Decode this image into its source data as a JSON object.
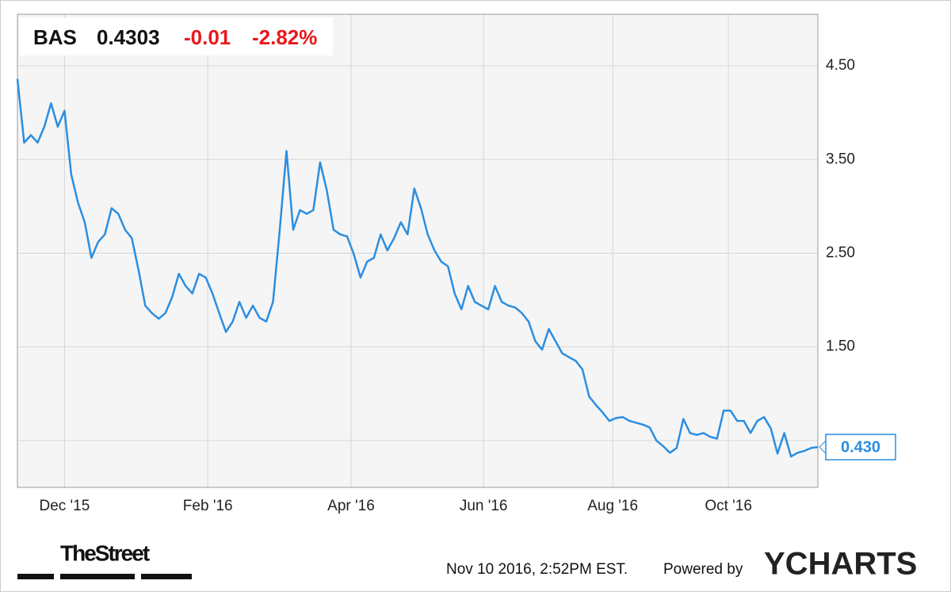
{
  "chart_data": {
    "type": "line",
    "quote": {
      "symbol": "BAS",
      "price": "0.4303",
      "change": "-0.01",
      "change_pct": "-2.82%"
    },
    "last_label": "0.430",
    "brand": "TheStreet",
    "timestamp": "Nov 10 2016, 2:52PM EST.",
    "powered_by": "Powered by",
    "provider": "YCHARTS",
    "color": "#2b8ee0",
    "grid": true,
    "ylim": [
      0,
      5.05
    ],
    "yticks": [
      {
        "value": 0.5,
        "label": null
      },
      {
        "value": 1.5,
        "label": "1.50"
      },
      {
        "value": 2.5,
        "label": "2.50"
      },
      {
        "value": 3.5,
        "label": "3.50"
      },
      {
        "value": 4.5,
        "label": "4.50"
      }
    ],
    "xlim": [
      0,
      119
    ],
    "xticks": [
      {
        "value": 7,
        "label": "Dec '15"
      },
      {
        "value": 28.3,
        "label": "Feb '16"
      },
      {
        "value": 49.6,
        "label": "Apr '16"
      },
      {
        "value": 69.3,
        "label": "Jun '16"
      },
      {
        "value": 88.5,
        "label": "Aug '16"
      },
      {
        "value": 105.7,
        "label": "Oct '16"
      }
    ],
    "values": [
      4.36,
      3.68,
      3.76,
      3.68,
      3.85,
      4.1,
      3.85,
      4.02,
      3.34,
      3.04,
      2.83,
      2.45,
      2.62,
      2.7,
      2.98,
      2.92,
      2.75,
      2.66,
      2.32,
      1.94,
      1.86,
      1.8,
      1.86,
      2.03,
      2.28,
      2.15,
      2.07,
      2.28,
      2.24,
      2.07,
      1.86,
      1.66,
      1.77,
      1.98,
      1.81,
      1.94,
      1.81,
      1.77,
      1.98,
      2.75,
      3.59,
      2.75,
      2.96,
      2.92,
      2.96,
      3.47,
      3.17,
      2.75,
      2.7,
      2.68,
      2.49,
      2.24,
      2.41,
      2.45,
      2.7,
      2.53,
      2.66,
      2.83,
      2.7,
      3.19,
      2.98,
      2.7,
      2.53,
      2.41,
      2.36,
      2.07,
      1.9,
      2.15,
      1.98,
      1.94,
      1.9,
      2.15,
      1.98,
      1.94,
      1.92,
      1.86,
      1.77,
      1.56,
      1.47,
      1.69,
      1.56,
      1.43,
      1.39,
      1.35,
      1.26,
      0.97,
      0.88,
      0.8,
      0.71,
      0.74,
      0.75,
      0.71,
      0.69,
      0.67,
      0.64,
      0.5,
      0.44,
      0.37,
      0.42,
      0.73,
      0.58,
      0.56,
      0.58,
      0.54,
      0.52,
      0.82,
      0.82,
      0.71,
      0.71,
      0.58,
      0.71,
      0.75,
      0.63,
      0.36,
      0.58,
      0.33,
      0.37,
      0.39,
      0.42,
      0.4303
    ]
  }
}
